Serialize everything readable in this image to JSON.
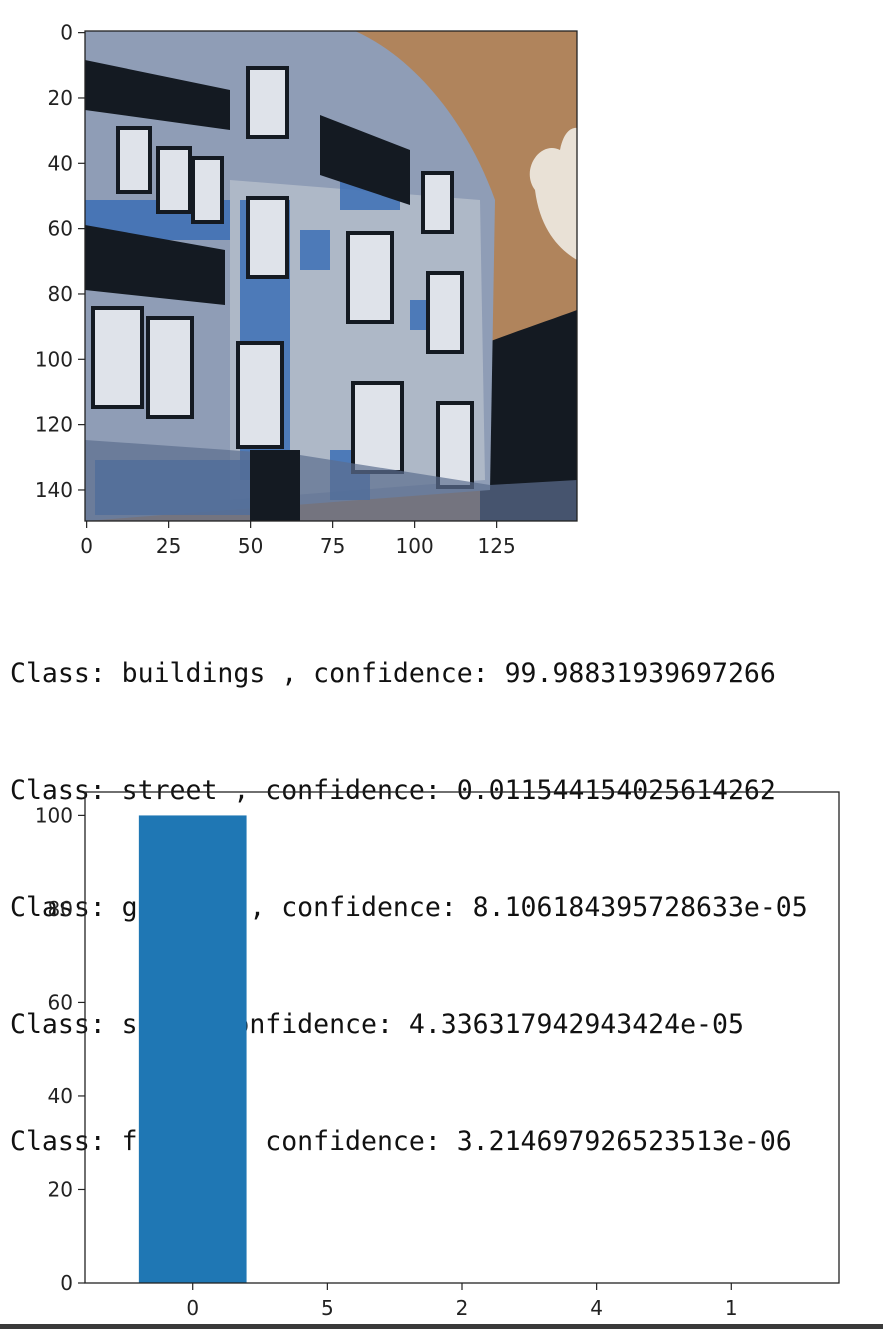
{
  "image_panel": {
    "type": "image",
    "description": "posterized photo of a building facade",
    "x_ticks": [
      "0",
      "25",
      "50",
      "75",
      "100",
      "125"
    ],
    "y_ticks": [
      "0",
      "20",
      "40",
      "60",
      "80",
      "100",
      "120",
      "140"
    ],
    "colors": {
      "sky": "#b0845c",
      "facade": "#8f9db6",
      "accent": "#3c6fb5",
      "dark": "#141a22"
    }
  },
  "output": {
    "lines": [
      "Class: buildings , confidence: 99.98831939697266",
      "Class: street , confidence: 0.011544154025614262",
      "Class: glacier , confidence: 8.106184395728633e-05",
      "Class: sea , confidence: 4.336317942943424e-05",
      "Class: forest , confidence: 3.214697926523513e-06"
    ]
  },
  "chart_data": {
    "type": "bar",
    "categories": [
      "0",
      "5",
      "2",
      "4",
      "1"
    ],
    "values": [
      99.98831939697266,
      0.011544154025614262,
      8.106184395728633e-05,
      4.336317942943424e-05,
      3.214697926523513e-06
    ],
    "title": "",
    "xlabel": "",
    "ylabel": "",
    "ylim": [
      0,
      105
    ],
    "y_ticks": [
      "0",
      "20",
      "40",
      "60",
      "80",
      "100"
    ],
    "grid": false,
    "bar_color": "#1f77b4"
  }
}
